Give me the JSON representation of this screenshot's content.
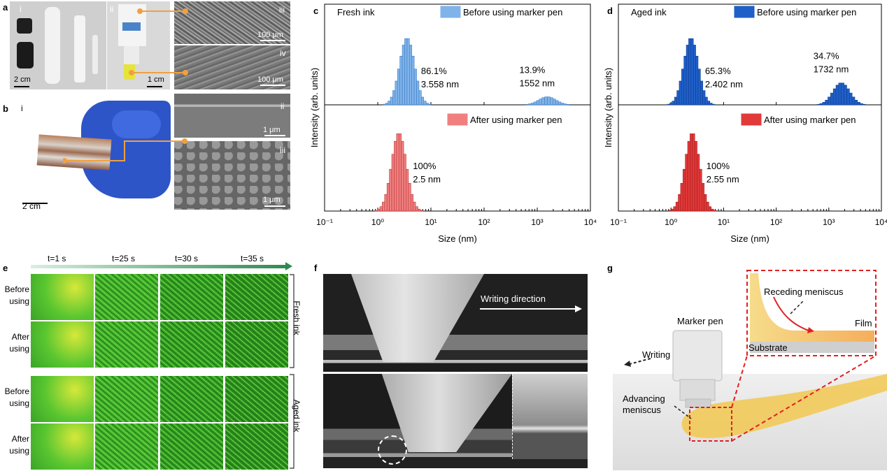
{
  "panel_labels": {
    "a": "a",
    "b": "b",
    "c": "c",
    "d": "d",
    "e": "e",
    "f": "f",
    "g": "g"
  },
  "panel_a": {
    "sub_i": "i",
    "sub_ii": "ii",
    "sub_iii": "iii",
    "sub_iv": "iv",
    "scale_i": "2 cm",
    "scale_ii": "1 cm",
    "scale_iii": "100 μm",
    "scale_iv": "100 μm"
  },
  "panel_b": {
    "sub_i": "i",
    "sub_ii": "ii",
    "sub_iii": "iii",
    "scale_i": "2 cm",
    "scale_ii": "1 μm",
    "scale_iii": "1 μm"
  },
  "panel_e": {
    "times": [
      "t=1 s",
      "t=25 s",
      "t=30 s",
      "t=35 s"
    ],
    "rows": [
      "Before\nusing",
      "After\nusing",
      "Before\nusing",
      "After\nusing"
    ],
    "group_fresh": "Fresh ink",
    "group_aged": "Aged ink"
  },
  "panel_f": {
    "writing_direction": "Writing direction"
  },
  "panel_g": {
    "receding": "Receding meniscus",
    "film": "Film",
    "substrate": "Substrate",
    "marker_pen": "Marker pen",
    "writing": "Writing",
    "advancing": "Advancing\nmeniscus"
  },
  "colors": {
    "fresh_before": "#7fb3ea",
    "aged_before": "#1f5fc8",
    "fresh_after": "#f08080",
    "aged_after": "#e23a3a",
    "ink_green": "#4cb82c",
    "meniscus": "#f2c850",
    "dashed_red": "#e02020"
  },
  "chart_data": [
    {
      "type": "bar",
      "title": "Fresh ink",
      "xlabel": "Size (nm)",
      "ylabel": "Intensity (arb. units)",
      "xscale": "log",
      "xlim": [
        0.1,
        10000
      ],
      "xticks": [
        "10⁻¹",
        "10⁰",
        "10¹",
        "10²",
        "10³",
        "10⁴"
      ],
      "series": [
        {
          "name": "Before using marker pen",
          "peaks": [
            {
              "percent_label": "86.1%",
              "size_label": "3.558 nm",
              "percent": 86.1,
              "size": 3.558
            },
            {
              "percent_label": "13.9%",
              "size_label": "1552 nm",
              "percent": 13.9,
              "size": 1552
            }
          ]
        },
        {
          "name": "After using marker pen",
          "peaks": [
            {
              "percent_label": "100%",
              "size_label": "2.5 nm",
              "percent": 100,
              "size": 2.5
            }
          ]
        }
      ]
    },
    {
      "type": "bar",
      "title": "Aged ink",
      "xlabel": "Size (nm)",
      "ylabel": "Intensity (arb. units)",
      "xscale": "log",
      "xlim": [
        0.1,
        10000
      ],
      "xticks": [
        "10⁻¹",
        "10⁰",
        "10¹",
        "10²",
        "10³",
        "10⁴"
      ],
      "series": [
        {
          "name": "Before using marker pen",
          "peaks": [
            {
              "percent_label": "65.3%",
              "size_label": "2.402 nm",
              "percent": 65.3,
              "size": 2.402
            },
            {
              "percent_label": "34.7%",
              "size_label": "1732 nm",
              "percent": 34.7,
              "size": 1732
            }
          ]
        },
        {
          "name": "After using marker pen",
          "peaks": [
            {
              "percent_label": "100%",
              "size_label": "2.55 nm",
              "percent": 100,
              "size": 2.55
            }
          ]
        }
      ]
    }
  ]
}
